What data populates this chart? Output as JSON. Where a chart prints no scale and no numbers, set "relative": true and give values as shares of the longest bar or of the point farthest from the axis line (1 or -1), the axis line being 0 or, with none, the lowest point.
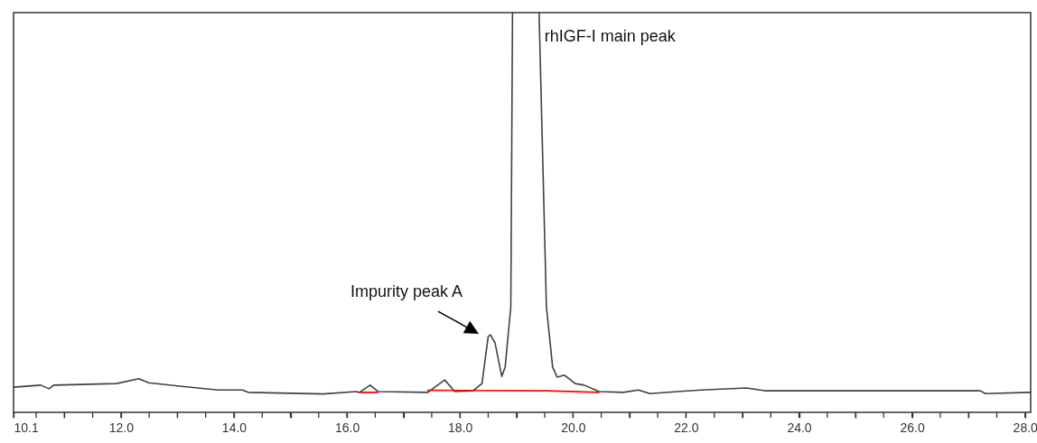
{
  "chart_data": {
    "type": "line",
    "relative": true,
    "annotations": [
      {
        "text": "rhIGF-I main peak",
        "x": 19.4,
        "y": 1
      },
      {
        "text": "Impurity peak A",
        "x": 18.54,
        "y": 0.194
      }
    ],
    "xlim": [
      10.1,
      28.1
    ],
    "xticks": [
      {
        "value": 10.1,
        "label": "10.1"
      },
      {
        "value": 10.5,
        "label": null
      },
      {
        "value": 11,
        "label": null
      },
      {
        "value": 11.5,
        "label": null
      },
      {
        "value": 12,
        "label": "12.0"
      },
      {
        "value": 12.5,
        "label": null
      },
      {
        "value": 13,
        "label": null
      },
      {
        "value": 13.5,
        "label": null
      },
      {
        "value": 14,
        "label": "14.0"
      },
      {
        "value": 14.5,
        "label": null
      },
      {
        "value": 15,
        "label": null
      },
      {
        "value": 15.5,
        "label": null
      },
      {
        "value": 16,
        "label": "16.0"
      },
      {
        "value": 16.5,
        "label": null
      },
      {
        "value": 17,
        "label": null
      },
      {
        "value": 17.5,
        "label": null
      },
      {
        "value": 18,
        "label": "18.0"
      },
      {
        "value": 18.5,
        "label": null
      },
      {
        "value": 19,
        "label": null
      },
      {
        "value": 19.5,
        "label": null
      },
      {
        "value": 20,
        "label": "20.0"
      },
      {
        "value": 20.5,
        "label": null
      },
      {
        "value": 21,
        "label": null
      },
      {
        "value": 21.5,
        "label": null
      },
      {
        "value": 22,
        "label": "22.0"
      },
      {
        "value": 22.5,
        "label": null
      },
      {
        "value": 23,
        "label": null
      },
      {
        "value": 23.5,
        "label": null
      },
      {
        "value": 24,
        "label": "24.0"
      },
      {
        "value": 24.5,
        "label": null
      },
      {
        "value": 25,
        "label": null
      },
      {
        "value": 25.5,
        "label": null
      },
      {
        "value": 26,
        "label": "26.0"
      },
      {
        "value": 26.5,
        "label": null
      },
      {
        "value": 27,
        "label": null
      },
      {
        "value": 27.5,
        "label": null
      },
      {
        "value": 28,
        "label": "28.0"
      }
    ],
    "grid": false,
    "marker": "none",
    "line_style": "solid",
    "series": [
      {
        "color": "#404040",
        "x": [
          10.1,
          10.58,
          10.73,
          10.81,
          11.92,
          12.32,
          12.49,
          13.08,
          13.72,
          14.15,
          14.25,
          15.58,
          16.16,
          16.22,
          16.41,
          16.55,
          17.43,
          17.73,
          17.91,
          18.23,
          18.39,
          18.5,
          18.54,
          18.62,
          18.74,
          18.8,
          18.9,
          18.93,
          19.17,
          19.4,
          19.53,
          19.64,
          19.72,
          19.85,
          20.04,
          20.2,
          20.46,
          20.89,
          21.16,
          21.36,
          22.27,
          23.07,
          23.39,
          27.21,
          27.3,
          28.1
        ],
        "values": [
          0.063,
          0.068,
          0.059,
          0.068,
          0.072,
          0.084,
          0.074,
          0.065,
          0.056,
          0.056,
          0.05,
          0.046,
          0.052,
          0.05,
          0.068,
          0.052,
          0.05,
          0.081,
          0.052,
          0.054,
          0.072,
          0.19,
          0.194,
          0.174,
          0.09,
          0.113,
          0.264,
          1,
          null,
          1,
          0.264,
          0.113,
          0.088,
          0.093,
          0.072,
          0.068,
          0.052,
          0.05,
          0.056,
          0.047,
          0.056,
          0.061,
          0.054,
          0.054,
          0.047,
          0.05
        ]
      },
      {
        "color": "#ff0000",
        "x": [
          16.22,
          16.55,
          17.0,
          17.43,
          19.53,
          20.46
        ],
        "values": [
          0.05,
          0.05,
          null,
          0.055,
          0.054,
          0.05
        ]
      }
    ]
  }
}
